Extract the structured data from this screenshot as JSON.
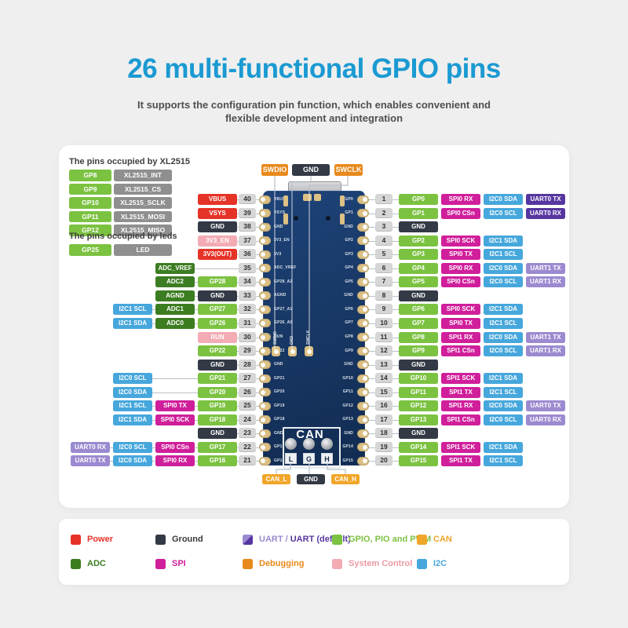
{
  "header": {
    "title": "26 multi-functional GPIO pins",
    "subtitle_line1": "It supports the configuration pin function, which enables convenient and",
    "subtitle_line2": "flexible development and integration"
  },
  "colors": {
    "pagebg": "#efefef",
    "title": "#1b9ad2",
    "power": "#e63327",
    "gnd": "#333a45",
    "sysctl": "#f3abb4",
    "adc": "#3c7d21",
    "gpio": "#7cc241",
    "i2c": "#46a7dc",
    "spi": "#d01f9b",
    "uart": "#9c8ad0",
    "uartd": "#5636a0",
    "debug": "#e8891c",
    "can": "#f0a62a",
    "gray": "#8f8f8f",
    "badge": "#d6d6d6",
    "pad": "#dcc084"
  },
  "occupied": {
    "xl2515": {
      "title": "The pins occupied by XL2515",
      "rows": [
        {
          "pin": "GP8",
          "func": "XL2515_INT"
        },
        {
          "pin": "GP9",
          "func": "XL2515_CS"
        },
        {
          "pin": "GP10",
          "func": "XL2515_SCLK"
        },
        {
          "pin": "GP11",
          "func": "XL2515_MOSI"
        },
        {
          "pin": "GP12",
          "func": "XL2515_MISO"
        }
      ]
    },
    "leds": {
      "title": "The pins occupied by leds",
      "rows": [
        {
          "pin": "GP25",
          "func": "LED"
        }
      ]
    }
  },
  "debug_top_labels": [
    {
      "text": "SWDIO",
      "type": "debug"
    },
    {
      "text": "GND",
      "type": "gnd"
    },
    {
      "text": "SWCLK",
      "type": "debug"
    }
  ],
  "can_bottom_labels": [
    {
      "text": "CAN_L",
      "type": "can"
    },
    {
      "text": "GND",
      "type": "gnd"
    },
    {
      "text": "CAN_H",
      "type": "can"
    }
  ],
  "board": {
    "can_module_label": "CAN",
    "can_terminals": [
      "L",
      "G",
      "H"
    ],
    "debug_pad_labels": [
      "SWDIO",
      "GND",
      "SWCLK"
    ],
    "silk_left": [
      "VBUS",
      "VSYS",
      "GND",
      "3V3_EN",
      "3V3",
      "ADC_VREF",
      "GP28_A2",
      "AGND",
      "GP27_A1",
      "GP26_A0",
      "RUN",
      "GP22",
      "GND",
      "GP21",
      "GP20",
      "GP19",
      "GP18",
      "GND",
      "GP17",
      "GP16"
    ],
    "silk_right": [
      "GP0",
      "GP1",
      "GND",
      "GP2",
      "GP3",
      "GP4",
      "GP5",
      "GND",
      "GP6",
      "GP7",
      "GP8",
      "GP9",
      "GND",
      "GP10",
      "GP11",
      "GP12",
      "GP13",
      "GND",
      "GP14",
      "GP15"
    ]
  },
  "pinout": {
    "left_rows": [
      {
        "num": "40",
        "chips": [
          {
            "col": 3,
            "label": "VBUS",
            "type": "power"
          }
        ]
      },
      {
        "num": "39",
        "chips": [
          {
            "col": 3,
            "label": "VSYS",
            "type": "power"
          }
        ]
      },
      {
        "num": "38",
        "chips": [
          {
            "col": 3,
            "label": "GND",
            "type": "gnd"
          }
        ]
      },
      {
        "num": "37",
        "chips": [
          {
            "col": 3,
            "label": "3V3_EN",
            "type": "sysctl"
          }
        ]
      },
      {
        "num": "36",
        "chips": [
          {
            "col": 3,
            "label": "3V3(OUT)",
            "type": "power"
          }
        ]
      },
      {
        "num": "35",
        "chips": [
          {
            "col": 2,
            "label": "ADC_VREF",
            "type": "adc"
          }
        ]
      },
      {
        "num": "34",
        "chips": [
          {
            "col": 2,
            "label": "ADC2",
            "type": "adc"
          },
          {
            "col": 3,
            "label": "GP28",
            "type": "gpio"
          }
        ]
      },
      {
        "num": "33",
        "chips": [
          {
            "col": 2,
            "label": "AGND",
            "type": "adc"
          },
          {
            "col": 3,
            "label": "GND",
            "type": "gnd"
          }
        ]
      },
      {
        "num": "32",
        "chips": [
          {
            "col": 1,
            "label": "I2C1 SCL",
            "type": "i2c"
          },
          {
            "col": 2,
            "label": "ADC1",
            "type": "adc"
          },
          {
            "col": 3,
            "label": "GP27",
            "type": "gpio"
          }
        ]
      },
      {
        "num": "31",
        "chips": [
          {
            "col": 1,
            "label": "I2C1 SDA",
            "type": "i2c"
          },
          {
            "col": 2,
            "label": "ADC0",
            "type": "adc"
          },
          {
            "col": 3,
            "label": "GP26",
            "type": "gpio"
          }
        ]
      },
      {
        "num": "30",
        "chips": [
          {
            "col": 3,
            "label": "RUN",
            "type": "sysctl"
          }
        ]
      },
      {
        "num": "29",
        "chips": [
          {
            "col": 3,
            "label": "GP22",
            "type": "gpio"
          }
        ]
      },
      {
        "num": "28",
        "chips": [
          {
            "col": 3,
            "label": "GND",
            "type": "gnd"
          }
        ]
      },
      {
        "num": "27",
        "chips": [
          {
            "col": 1,
            "label": "I2C0 SCL",
            "type": "i2c"
          },
          {
            "col": 3,
            "label": "GP21",
            "type": "gpio"
          }
        ]
      },
      {
        "num": "26",
        "chips": [
          {
            "col": 1,
            "label": "I2C0 SDA",
            "type": "i2c"
          },
          {
            "col": 3,
            "label": "GP20",
            "type": "gpio"
          }
        ]
      },
      {
        "num": "25",
        "chips": [
          {
            "col": 1,
            "label": "I2C1 SCL",
            "type": "i2c"
          },
          {
            "col": 2,
            "label": "SPI0 TX",
            "type": "spi"
          },
          {
            "col": 3,
            "label": "GP19",
            "type": "gpio"
          }
        ]
      },
      {
        "num": "24",
        "chips": [
          {
            "col": 1,
            "label": "I2C1 SDA",
            "type": "i2c"
          },
          {
            "col": 2,
            "label": "SPI0 SCK",
            "type": "spi"
          },
          {
            "col": 3,
            "label": "GP18",
            "type": "gpio"
          }
        ]
      },
      {
        "num": "23",
        "chips": [
          {
            "col": 3,
            "label": "GND",
            "type": "gnd"
          }
        ]
      },
      {
        "num": "22",
        "chips": [
          {
            "col": 0,
            "label": "UART0 RX",
            "type": "uart"
          },
          {
            "col": 1,
            "label": "I2C0 SCL",
            "type": "i2c"
          },
          {
            "col": 2,
            "label": "SPI0 CSn",
            "type": "spi"
          },
          {
            "col": 3,
            "label": "GP17",
            "type": "gpio"
          }
        ]
      },
      {
        "num": "21",
        "chips": [
          {
            "col": 0,
            "label": "UART0 TX",
            "type": "uart"
          },
          {
            "col": 1,
            "label": "I2C0 SDA",
            "type": "i2c"
          },
          {
            "col": 2,
            "label": "SPI0 RX",
            "type": "spi"
          },
          {
            "col": 3,
            "label": "GP16",
            "type": "gpio"
          }
        ]
      }
    ],
    "right_rows": [
      {
        "num": "1",
        "chips": [
          {
            "col": 0,
            "label": "GP0",
            "type": "gpio"
          },
          {
            "col": 1,
            "label": "SPI0 RX",
            "type": "spi"
          },
          {
            "col": 2,
            "label": "I2C0 SDA",
            "type": "i2c"
          },
          {
            "col": 3,
            "label": "UART0 TX",
            "type": "uartd"
          }
        ]
      },
      {
        "num": "2",
        "chips": [
          {
            "col": 0,
            "label": "GP1",
            "type": "gpio"
          },
          {
            "col": 1,
            "label": "SPI0 CSn",
            "type": "spi"
          },
          {
            "col": 2,
            "label": "I2C0 SCL",
            "type": "i2c"
          },
          {
            "col": 3,
            "label": "UART0 RX",
            "type": "uartd"
          }
        ]
      },
      {
        "num": "3",
        "chips": [
          {
            "col": 0,
            "label": "GND",
            "type": "gnd"
          }
        ]
      },
      {
        "num": "4",
        "chips": [
          {
            "col": 0,
            "label": "GP2",
            "type": "gpio"
          },
          {
            "col": 1,
            "label": "SPI0 SCK",
            "type": "spi"
          },
          {
            "col": 2,
            "label": "I2C1 SDA",
            "type": "i2c"
          }
        ]
      },
      {
        "num": "5",
        "chips": [
          {
            "col": 0,
            "label": "GP3",
            "type": "gpio"
          },
          {
            "col": 1,
            "label": "SPI0 TX",
            "type": "spi"
          },
          {
            "col": 2,
            "label": "I2C1 SCL",
            "type": "i2c"
          }
        ]
      },
      {
        "num": "6",
        "chips": [
          {
            "col": 0,
            "label": "GP4",
            "type": "gpio"
          },
          {
            "col": 1,
            "label": "SPI0 RX",
            "type": "spi"
          },
          {
            "col": 2,
            "label": "I2C0 SDA",
            "type": "i2c"
          },
          {
            "col": 3,
            "label": "UART1 TX",
            "type": "uart"
          }
        ]
      },
      {
        "num": "7",
        "chips": [
          {
            "col": 0,
            "label": "GP5",
            "type": "gpio"
          },
          {
            "col": 1,
            "label": "SPI0 CSn",
            "type": "spi"
          },
          {
            "col": 2,
            "label": "I2C0 SCL",
            "type": "i2c"
          },
          {
            "col": 3,
            "label": "UART1 RX",
            "type": "uart"
          }
        ]
      },
      {
        "num": "8",
        "chips": [
          {
            "col": 0,
            "label": "GND",
            "type": "gnd"
          }
        ]
      },
      {
        "num": "9",
        "chips": [
          {
            "col": 0,
            "label": "GP6",
            "type": "gpio"
          },
          {
            "col": 1,
            "label": "SPI0 SCK",
            "type": "spi"
          },
          {
            "col": 2,
            "label": "I2C1 SDA",
            "type": "i2c"
          }
        ]
      },
      {
        "num": "10",
        "chips": [
          {
            "col": 0,
            "label": "GP7",
            "type": "gpio"
          },
          {
            "col": 1,
            "label": "SPI0 TX",
            "type": "spi"
          },
          {
            "col": 2,
            "label": "I2C1 SCL",
            "type": "i2c"
          }
        ]
      },
      {
        "num": "11",
        "chips": [
          {
            "col": 0,
            "label": "GP8",
            "type": "gpio"
          },
          {
            "col": 1,
            "label": "SPI1 RX",
            "type": "spi"
          },
          {
            "col": 2,
            "label": "I2C0 SDA",
            "type": "i2c"
          },
          {
            "col": 3,
            "label": "UART1 TX",
            "type": "uart"
          }
        ]
      },
      {
        "num": "12",
        "chips": [
          {
            "col": 0,
            "label": "GP9",
            "type": "gpio"
          },
          {
            "col": 1,
            "label": "SPI1 CSn",
            "type": "spi"
          },
          {
            "col": 2,
            "label": "I2C0 SCL",
            "type": "i2c"
          },
          {
            "col": 3,
            "label": "UART1 RX",
            "type": "uart"
          }
        ]
      },
      {
        "num": "13",
        "chips": [
          {
            "col": 0,
            "label": "GND",
            "type": "gnd"
          }
        ]
      },
      {
        "num": "14",
        "chips": [
          {
            "col": 0,
            "label": "GP10",
            "type": "gpio"
          },
          {
            "col": 1,
            "label": "SPI1 SCK",
            "type": "spi"
          },
          {
            "col": 2,
            "label": "I2C1 SDA",
            "type": "i2c"
          }
        ]
      },
      {
        "num": "15",
        "chips": [
          {
            "col": 0,
            "label": "GP11",
            "type": "gpio"
          },
          {
            "col": 1,
            "label": "SPI1 TX",
            "type": "spi"
          },
          {
            "col": 2,
            "label": "I2C1 SCL",
            "type": "i2c"
          }
        ]
      },
      {
        "num": "16",
        "chips": [
          {
            "col": 0,
            "label": "GP12",
            "type": "gpio"
          },
          {
            "col": 1,
            "label": "SPI1 RX",
            "type": "spi"
          },
          {
            "col": 2,
            "label": "I2C0 SDA",
            "type": "i2c"
          },
          {
            "col": 3,
            "label": "UART0 TX",
            "type": "uart"
          }
        ]
      },
      {
        "num": "17",
        "chips": [
          {
            "col": 0,
            "label": "GP13",
            "type": "gpio"
          },
          {
            "col": 1,
            "label": "SPI1 CSn",
            "type": "spi"
          },
          {
            "col": 2,
            "label": "I2C0 SCL",
            "type": "i2c"
          },
          {
            "col": 3,
            "label": "UART0 RX",
            "type": "uart"
          }
        ]
      },
      {
        "num": "18",
        "chips": [
          {
            "col": 0,
            "label": "GND",
            "type": "gnd"
          }
        ]
      },
      {
        "num": "19",
        "chips": [
          {
            "col": 0,
            "label": "GP14",
            "type": "gpio"
          },
          {
            "col": 1,
            "label": "SPI1 SCK",
            "type": "spi"
          },
          {
            "col": 2,
            "label": "I2C1 SDA",
            "type": "i2c"
          }
        ]
      },
      {
        "num": "20",
        "chips": [
          {
            "col": 0,
            "label": "GP15",
            "type": "gpio"
          },
          {
            "col": 1,
            "label": "SPI1 TX",
            "type": "spi"
          },
          {
            "col": 2,
            "label": "I2C1 SCL",
            "type": "i2c"
          }
        ]
      }
    ]
  },
  "legend": {
    "rows": [
      [
        {
          "label": "Power",
          "type": "power"
        },
        {
          "label": "Ground",
          "type": "gnd",
          "text_color": "#3a3a3a"
        },
        {
          "label": "UART / UART (default)",
          "type": "uartsplit",
          "parts": [
            {
              "text": "UART / ",
              "type": "uart"
            },
            {
              "text": "UART (default)",
              "type": "uartd"
            }
          ]
        },
        {
          "label": "GPIO, PIO and PWM",
          "type": "gpio"
        },
        {
          "label": "CAN",
          "type": "can"
        }
      ],
      [
        {
          "label": "ADC",
          "type": "adc"
        },
        {
          "label": "SPI",
          "type": "spi"
        },
        {
          "label": "Debugging",
          "type": "debug"
        },
        {
          "label": "System Control",
          "type": "sysctl",
          "text_color": "#ec9aa4"
        },
        {
          "label": "I2C",
          "type": "i2c"
        }
      ]
    ]
  }
}
